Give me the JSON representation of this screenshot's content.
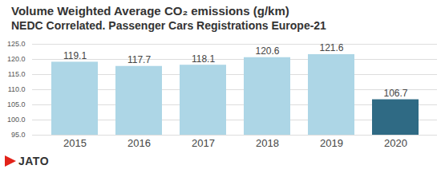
{
  "chart_data": {
    "type": "bar",
    "title": "Volume Weighted Average CO₂ emissions (g/km)",
    "subtitle": "NEDC Correlated. Passenger Cars Registrations Europe-21",
    "source": "JATO",
    "categories": [
      "2015",
      "2016",
      "2017",
      "2018",
      "2019",
      "2020"
    ],
    "values": [
      119.1,
      117.7,
      118.1,
      120.6,
      121.6,
      106.7
    ],
    "colors": [
      "#add6e6",
      "#add6e6",
      "#add6e6",
      "#add6e6",
      "#add6e6",
      "#2f6a84"
    ],
    "ylim": [
      95,
      125
    ],
    "yticks": [
      {
        "value": 95,
        "label": "95.0"
      },
      {
        "value": 100,
        "label": "100.0"
      },
      {
        "value": 105,
        "label": "105.0"
      },
      {
        "value": 110,
        "label": "110.0"
      },
      {
        "value": 115,
        "label": "115.0"
      },
      {
        "value": 120,
        "label": "120.0"
      },
      {
        "value": 125,
        "label": "125.0"
      }
    ],
    "grid": true,
    "data_labels": true
  }
}
